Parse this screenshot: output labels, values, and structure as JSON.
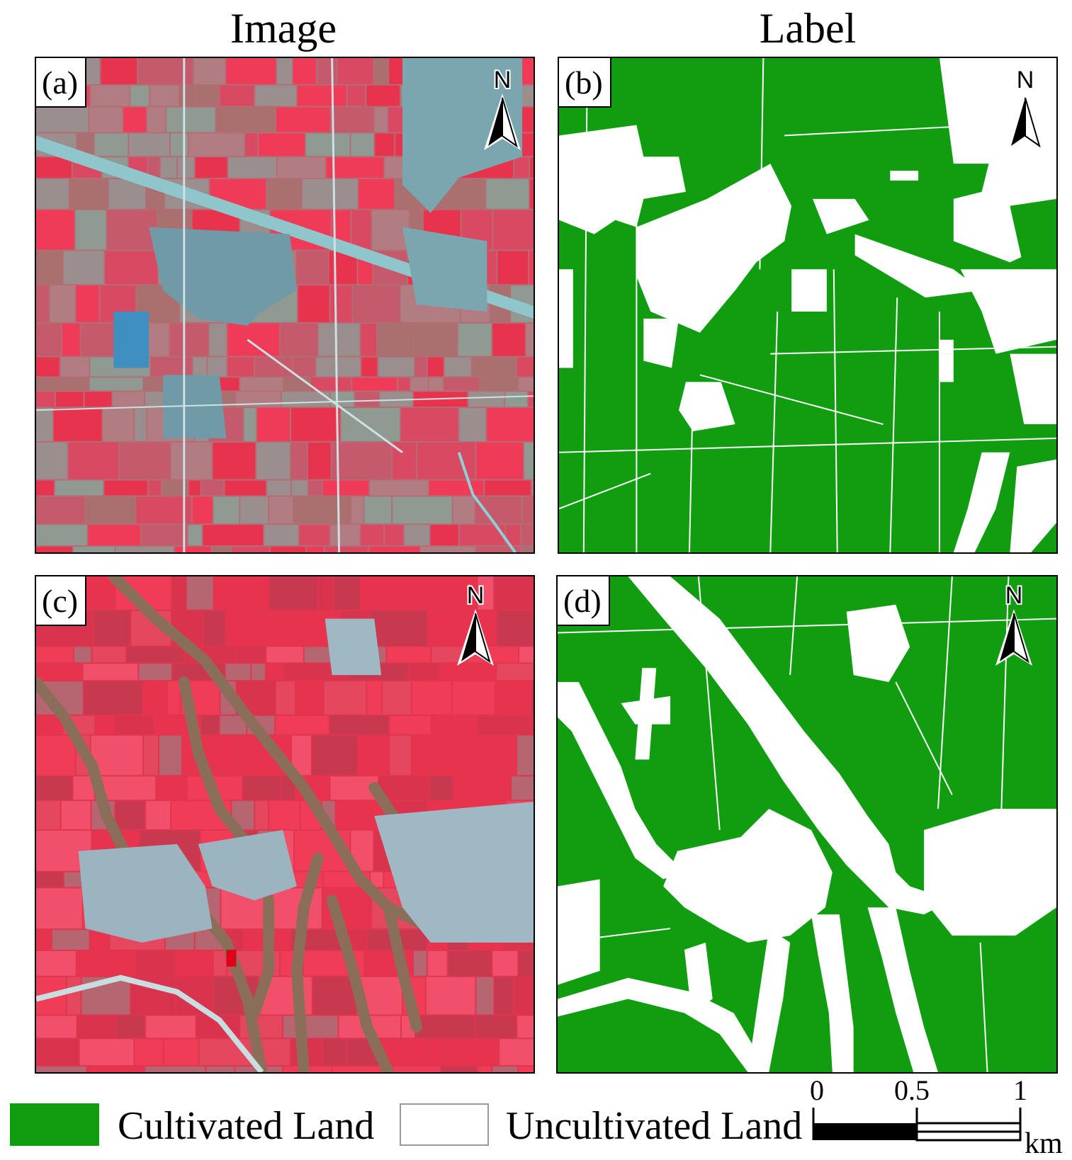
{
  "columns": {
    "image_title": "Image",
    "label_title": "Label"
  },
  "panels": {
    "a": {
      "letter": "(a)",
      "kind": "false-color satellite image"
    },
    "b": {
      "letter": "(b)",
      "kind": "cultivated land label map"
    },
    "c": {
      "letter": "(c)",
      "kind": "false-color satellite image"
    },
    "d": {
      "letter": "(d)",
      "kind": "cultivated land label map"
    }
  },
  "north_arrow": {
    "letter": "N"
  },
  "legend": {
    "cultivated": {
      "label": "Cultivated Land",
      "color": "#109d10"
    },
    "uncultivated": {
      "label": "Uncultivated Land",
      "color": "#ffffff"
    }
  },
  "scale_bar": {
    "ticks": [
      "0",
      "0.5",
      "1"
    ],
    "unit": "km"
  },
  "colors": {
    "crop_red": "#e8334f",
    "bare_gray": "#9a8f8e",
    "urban_cyan": "#7fb8c0",
    "green": "#109d10"
  }
}
